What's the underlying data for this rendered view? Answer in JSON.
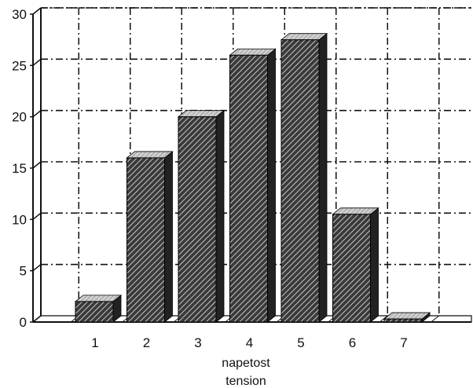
{
  "chart_data": {
    "type": "bar",
    "categories": [
      "1",
      "2",
      "3",
      "4",
      "5",
      "6",
      "7"
    ],
    "values": [
      2,
      16,
      20,
      26,
      27.5,
      10.5,
      0.3
    ],
    "xlabel": "napetost",
    "xlabel_secondary": "tension",
    "yticks": [
      "0",
      "5",
      "10",
      "15",
      "20",
      "25",
      "30"
    ],
    "ylim": [
      0,
      30
    ],
    "grid": true,
    "style": "3d hatched bars, dash-dot gridlines",
    "colors": {
      "bar_face": "#4a4a4a",
      "bar_top": "#dcdcdc",
      "bar_side": "#222222",
      "grid": "#111111"
    }
  }
}
